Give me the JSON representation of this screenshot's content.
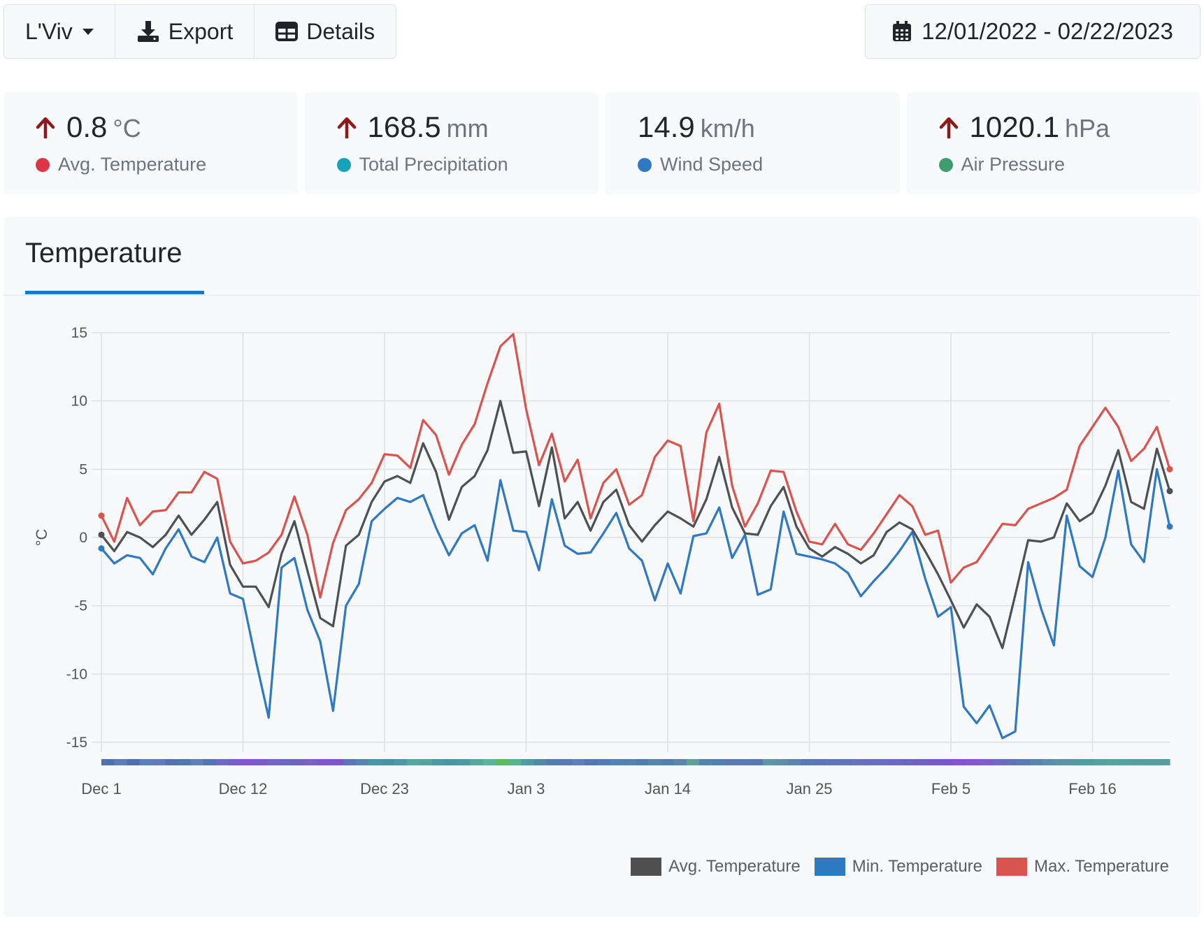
{
  "toolbar": {
    "location_label": "L'Viv",
    "export_label": "Export",
    "details_label": "Details"
  },
  "date_range": {
    "label": "12/01/2022 - 02/22/2023"
  },
  "stats": [
    {
      "value": "0.8",
      "unit": "°C",
      "label": "Avg. Temperature",
      "trend": "up",
      "color": "#dc3545"
    },
    {
      "value": "168.5",
      "unit": "mm",
      "label": "Total Precipitation",
      "trend": "up",
      "color": "#17a2b8"
    },
    {
      "value": "14.9",
      "unit": "km/h",
      "label": "Wind Speed",
      "trend": "none",
      "color": "#2f79c2"
    },
    {
      "value": "1020.1",
      "unit": "hPa",
      "label": "Air Pressure",
      "trend": "up",
      "color": "#3e9d6c"
    }
  ],
  "colors": {
    "trend_up": "#8b1a1a",
    "tab_accent": "#1f75c4"
  },
  "tab": {
    "label": "Temperature"
  },
  "chart_data": {
    "type": "line",
    "ylabel": "°C",
    "ylim": [
      -15,
      15
    ],
    "yticks": [
      15,
      10,
      5,
      0,
      -5,
      -10,
      -15
    ],
    "x_tick_labels": [
      "Dec 1",
      "Dec 12",
      "Dec 23",
      "Jan 3",
      "Jan 14",
      "Jan 25",
      "Feb 5",
      "Feb 16"
    ],
    "x_tick_days": [
      0,
      11,
      22,
      33,
      44,
      55,
      66,
      77
    ],
    "x_days": 84,
    "grid": true,
    "legend_position": "bottom-right",
    "series": [
      {
        "name": "Avg. Temperature",
        "color": "#505050",
        "values": [
          0.2,
          -1.0,
          0.4,
          0.0,
          -0.7,
          0.2,
          1.6,
          0.2,
          1.3,
          2.6,
          -2.0,
          -3.6,
          -3.6,
          -5.1,
          -1.2,
          1.2,
          -2.4,
          -5.9,
          -6.5,
          -0.6,
          0.2,
          2.6,
          4.1,
          4.5,
          4.0,
          6.9,
          4.8,
          1.3,
          3.7,
          4.5,
          6.4,
          10.0,
          6.2,
          6.3,
          2.3,
          6.6,
          1.4,
          2.6,
          0.5,
          2.6,
          3.5,
          0.9,
          -0.3,
          0.9,
          1.9,
          1.4,
          0.8,
          2.8,
          5.9,
          2.2,
          0.3,
          0.2,
          2.3,
          3.7,
          0.8,
          -0.8,
          -1.4,
          -0.7,
          -1.2,
          -1.9,
          -1.3,
          0.4,
          1.1,
          0.6,
          -1.0,
          -2.7,
          -4.6,
          -6.6,
          -4.9,
          -5.8,
          -8.1,
          -4.2,
          -0.2,
          -0.3,
          0.0,
          2.5,
          1.2,
          1.8,
          3.8,
          6.4,
          2.6,
          2.1,
          6.5,
          3.4
        ]
      },
      {
        "name": "Min. Temperature",
        "color": "#2f79c2",
        "values": [
          -0.8,
          -1.9,
          -1.3,
          -1.5,
          -2.7,
          -0.8,
          0.6,
          -1.4,
          -1.8,
          0.0,
          -4.1,
          -4.5,
          -9.0,
          -13.2,
          -2.2,
          -1.5,
          -5.3,
          -7.6,
          -12.7,
          -5.0,
          -3.4,
          1.2,
          2.1,
          2.9,
          2.6,
          3.1,
          0.7,
          -1.3,
          0.3,
          0.9,
          -1.7,
          4.2,
          0.5,
          0.4,
          -2.4,
          2.8,
          -0.6,
          -1.2,
          -1.1,
          0.3,
          1.8,
          -0.8,
          -1.7,
          -4.6,
          -1.9,
          -4.1,
          0.1,
          0.3,
          2.2,
          -1.5,
          0.2,
          -4.2,
          -3.8,
          1.9,
          -1.2,
          -1.4,
          -1.6,
          -1.9,
          -2.6,
          -4.3,
          -3.2,
          -2.2,
          -1.0,
          0.4,
          -3.0,
          -5.8,
          -5.1,
          -12.4,
          -13.6,
          -12.3,
          -14.7,
          -14.2,
          -1.8,
          -5.2,
          -7.9,
          1.6,
          -2.1,
          -2.9,
          0.0,
          4.9,
          -0.5,
          -1.8,
          5.0,
          0.8
        ]
      },
      {
        "name": "Max. Temperature",
        "color": "#d9534f",
        "values": [
          1.6,
          -0.3,
          2.9,
          0.9,
          1.9,
          2.0,
          3.3,
          3.3,
          4.8,
          4.3,
          -0.3,
          -1.9,
          -1.7,
          -1.1,
          0.2,
          3.0,
          0.2,
          -4.4,
          -0.4,
          2.0,
          2.8,
          4.0,
          6.1,
          6.0,
          5.1,
          8.6,
          7.5,
          4.6,
          6.8,
          8.3,
          11.3,
          14.0,
          14.9,
          9.4,
          5.3,
          7.6,
          4.1,
          5.7,
          1.4,
          4.0,
          5.0,
          2.4,
          3.1,
          5.9,
          7.1,
          6.7,
          1.2,
          7.7,
          9.8,
          3.8,
          0.8,
          2.5,
          4.9,
          4.8,
          1.9,
          -0.3,
          -0.5,
          1.0,
          -0.5,
          -0.9,
          0.3,
          1.7,
          3.1,
          2.3,
          0.2,
          0.5,
          -3.3,
          -2.2,
          -1.8,
          -0.4,
          1.0,
          0.9,
          2.1,
          2.5,
          2.9,
          3.5,
          6.7,
          8.1,
          9.5,
          8.1,
          5.6,
          6.5,
          8.1,
          5.0
        ]
      }
    ],
    "strip_colors": [
      "#4c72b0",
      "#5a7db8",
      "#4f6fb2",
      "#5b82b5",
      "#5f7cb9",
      "#5471b2",
      "#4f78ad",
      "#5e82b8",
      "#5574b4",
      "#6c6ac2",
      "#7a5cc8",
      "#8256cf",
      "#7a5bc9",
      "#7264c4",
      "#6a67c1",
      "#6e62c4",
      "#7861c6",
      "#8055cc",
      "#7a58ca",
      "#5d76b8",
      "#5585b1",
      "#4d95a6",
      "#4c90a6",
      "#5295a8",
      "#58a5a0",
      "#5aa19e",
      "#4f98a2",
      "#4d93a6",
      "#4e98a3",
      "#57a89a",
      "#5eb49a",
      "#62b85c",
      "#58b490",
      "#5399a2",
      "#5088ad",
      "#527cb1",
      "#5479b3",
      "#5a82b6",
      "#5178b0",
      "#4f7db2",
      "#5284b3",
      "#5282b0",
      "#4f7db2",
      "#5686ae",
      "#4f81b0",
      "#5a86ad",
      "#5fa098",
      "#5185b0",
      "#4d82b2",
      "#5a7ab4",
      "#5a7ab6",
      "#5579b3",
      "#5c97a6",
      "#5e8fa9",
      "#5a85b2",
      "#5879b4",
      "#5d75b8",
      "#6176ba",
      "#5f73bc",
      "#6870bf",
      "#666ebd",
      "#6a6cc0",
      "#6b68c2",
      "#6c66c3",
      "#7060c4",
      "#735cc7",
      "#7a58ca",
      "#8553d0",
      "#8656cf",
      "#7d5fc9",
      "#7168c2",
      "#6172ba",
      "#5b7bb6",
      "#5a84b1",
      "#5a8fab",
      "#5b93a9",
      "#5a97a5",
      "#549ba2",
      "#58a09f",
      "#5ba19e",
      "#56a0a0",
      "#5a9ca2",
      "#5a9ba4",
      "#5b9ca2"
    ]
  }
}
